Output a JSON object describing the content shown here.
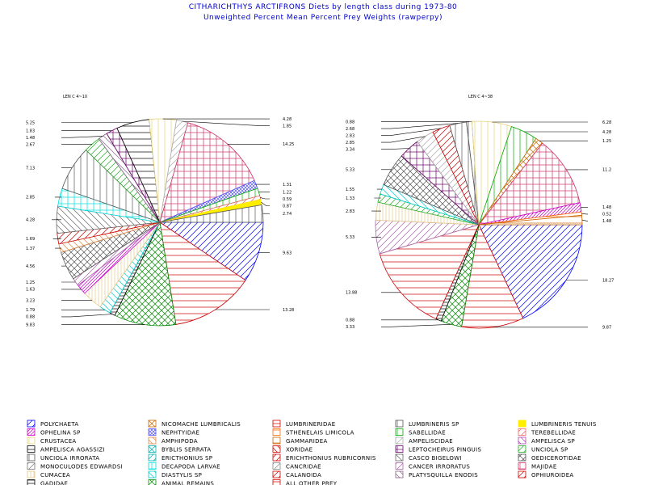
{
  "title": "CITHARICHTHYS ARCTIFRONS Diets by length class during 1973-80",
  "subtitle": "Unweighted Percent Mean Percent Prey  Weights (rawperpy)",
  "chart_data": [
    {
      "type": "pie",
      "label": "LEN C 4~10",
      "slices": [
        {
          "key": "polychaeta",
          "value": 9.63,
          "label": "9.63"
        },
        {
          "key": "other",
          "value": 13.28,
          "label": "13.28"
        },
        {
          "key": "animal",
          "value": 9.83,
          "label": "9.83"
        },
        {
          "key": "gad",
          "value": 0.88,
          "label": "0.88"
        },
        {
          "key": "diast",
          "value": 1.79,
          "label": "1.79"
        },
        {
          "key": "cuma",
          "value": 3.23,
          "label": "3.23"
        },
        {
          "key": "ophelina",
          "value": 1.63,
          "label": "1.63"
        },
        {
          "key": "cancer",
          "value": 1.25,
          "label": "1.25"
        },
        {
          "key": "oedic",
          "value": 4.56,
          "label": "4.56"
        },
        {
          "key": "amphipoda",
          "value": 1.37,
          "label": "1.37"
        },
        {
          "key": "erubr",
          "value": 1.69,
          "label": "1.69"
        },
        {
          "key": "casco",
          "value": 4.28,
          "label": "4.28"
        },
        {
          "key": "decapoda",
          "value": 2.85,
          "label": "2.85"
        },
        {
          "key": "uirr",
          "value": 7.13,
          "label": "7.13"
        },
        {
          "key": "unciola",
          "value": 2.67,
          "label": "2.67"
        },
        {
          "key": "platy",
          "value": 1.48,
          "label": "1.48"
        },
        {
          "key": "pinguis",
          "value": 1.83,
          "label": "1.83"
        },
        {
          "key": "ampag",
          "value": 5.25,
          "label": "5.25"
        },
        {
          "key": "crustacea",
          "value": 4.28,
          "label": "4.28"
        },
        {
          "key": "ampel",
          "value": 1.85,
          "label": "1.85"
        },
        {
          "key": "majid",
          "value": 14.25,
          "label": "14.25"
        },
        {
          "key": "nephtyidae",
          "value": 1.31,
          "label": "1.31"
        },
        {
          "key": "sabell",
          "value": 1.22,
          "label": "1.22"
        },
        {
          "key": "tereb",
          "value": 0.59,
          "label": "0.59"
        },
        {
          "key": "lumtenuis",
          "value": 0.87,
          "label": "0.87"
        },
        {
          "key": "lumsp",
          "value": 2.74,
          "label": "2.74"
        }
      ]
    },
    {
      "type": "pie",
      "label": "LEN C 4~38",
      "slices": [
        {
          "key": "polychaeta",
          "value": 18.27,
          "label": "18.27"
        },
        {
          "key": "lumbrin",
          "value": 9.87,
          "label": "9.87"
        },
        {
          "key": "animal",
          "value": 3.33,
          "label": "3.33"
        },
        {
          "key": "gad",
          "value": 0.88,
          "label": "0.88"
        },
        {
          "key": "other",
          "value": 13.88,
          "label": "13.88"
        },
        {
          "key": "cancer",
          "value": 5.33,
          "label": "5.33"
        },
        {
          "key": "cuma",
          "value": 2.83,
          "label": "2.83"
        },
        {
          "key": "unciola",
          "value": 1.33,
          "label": "1.33"
        },
        {
          "key": "diast",
          "value": 1.55,
          "label": "1.55"
        },
        {
          "key": "oedic",
          "value": 5.33,
          "label": "5.33"
        },
        {
          "key": "pinguis",
          "value": 3.34,
          "label": "3.34"
        },
        {
          "key": "ampel",
          "value": 2.85,
          "label": "2.85"
        },
        {
          "key": "erubr",
          "value": 2.83,
          "label": "2.83"
        },
        {
          "key": "lumsp",
          "value": 2.68,
          "label": "2.68"
        },
        {
          "key": "uirr",
          "value": 0.88,
          "label": "0.88"
        },
        {
          "key": "crustacea",
          "value": 6.28,
          "label": "6.28"
        },
        {
          "key": "sabell",
          "value": 4.28,
          "label": "4.28"
        },
        {
          "key": "nicomache",
          "value": 1.25,
          "label": "1.25"
        },
        {
          "key": "majid",
          "value": 11.2,
          "label": "11.2"
        },
        {
          "key": "ophelina",
          "value": 1.48,
          "label": "1.48"
        },
        {
          "key": "stenel",
          "value": 0.52,
          "label": "0.52"
        },
        {
          "key": "gamm",
          "value": 1.48,
          "label": "1.48"
        }
      ]
    }
  ],
  "legend": {
    "columns": [
      [
        {
          "key": "polychaeta",
          "name": "POLYCHAETA"
        },
        {
          "key": "ophelina",
          "name": "OPHELINA SP"
        },
        {
          "key": "crustacea",
          "name": "CRUSTACEA"
        },
        {
          "key": "ampag",
          "name": "AMPELISCA AGASSIZI"
        },
        {
          "key": "uirr",
          "name": "UNCIOLA IRRORATA"
        },
        {
          "key": "mono",
          "name": "MONOCULODES EDWARDSI"
        },
        {
          "key": "cuma",
          "name": "CUMACEA"
        },
        {
          "key": "gad",
          "name": "GADIDAE"
        }
      ],
      [
        {
          "key": "nicomache",
          "name": "NICOMACHE LUMBRICALIS"
        },
        {
          "key": "nephtyidae",
          "name": "NEPHTYIDAE"
        },
        {
          "key": "amphipoda",
          "name": "AMPHIPODA"
        },
        {
          "key": "byblis",
          "name": "BYBLIS SERRATA"
        },
        {
          "key": "erics",
          "name": "ERICTHONIUS SP"
        },
        {
          "key": "decapoda",
          "name": "DECAPODA LARVAE"
        },
        {
          "key": "diast",
          "name": "DIASTYLIS SP"
        },
        {
          "key": "animal",
          "name": "ANIMAL REMAINS"
        }
      ],
      [
        {
          "key": "lumbrin",
          "name": "LUMBRINERIDAE"
        },
        {
          "key": "stenel",
          "name": "STHENELAIS LIMICOLA"
        },
        {
          "key": "gamm",
          "name": "GAMMARIDEA"
        },
        {
          "key": "xor",
          "name": "XORIDAE"
        },
        {
          "key": "erubr",
          "name": "ERICHTHONIUS RUBRICORNIS"
        },
        {
          "key": "cancrid",
          "name": "CANCRIDAE"
        },
        {
          "key": "calan",
          "name": "CALANOIDA"
        },
        {
          "key": "other",
          "name": "ALL OTHER PREY"
        }
      ],
      [
        {
          "key": "lumsp",
          "name": "LUMBRINERIS SP"
        },
        {
          "key": "sabell",
          "name": "SABELLIDAE"
        },
        {
          "key": "ampel",
          "name": "AMPELISCIDAE"
        },
        {
          "key": "pinguis",
          "name": "LEPTOCHEIRUS PINGUIS"
        },
        {
          "key": "casco",
          "name": "CASCO BIGELOWI"
        },
        {
          "key": "cancer",
          "name": "CANCER IRRORATUS"
        },
        {
          "key": "platy",
          "name": "PLATYSQUILLA ENODIS"
        }
      ],
      [
        {
          "key": "lumtenuis",
          "name": "LUMBRINERIS TENUIS"
        },
        {
          "key": "tereb",
          "name": "TEREBELLIDAE"
        },
        {
          "key": "ampelsp",
          "name": "AMPELISCA SP"
        },
        {
          "key": "unciola",
          "name": "UNCIOLA SP"
        },
        {
          "key": "oedic",
          "name": "OEDICEROTIDAE"
        },
        {
          "key": "majid",
          "name": "MAJIDAE"
        },
        {
          "key": "ophi",
          "name": "OPHIUROIDEA"
        }
      ]
    ]
  },
  "styles": {
    "polychaeta": {
      "color": "#0000ff",
      "pattern": "diag"
    },
    "ophelina": {
      "color": "#cc00cc",
      "pattern": "diag-dense"
    },
    "crustacea": {
      "color": "#e6d27a",
      "pattern": "vert"
    },
    "ampag": {
      "color": "#000000",
      "pattern": "horiz"
    },
    "uirr": {
      "color": "#555555",
      "pattern": "vert"
    },
    "mono": {
      "color": "#777777",
      "pattern": "diag"
    },
    "cuma": {
      "color": "#e6c88a",
      "pattern": "vert-dense"
    },
    "gad": {
      "color": "#000000",
      "pattern": "horiz-dense"
    },
    "nicomache": {
      "color": "#cc6600",
      "pattern": "cross-diag"
    },
    "nephtyidae": {
      "color": "#5555ff",
      "pattern": "cross-diag-dense"
    },
    "amphipoda": {
      "color": "#dd8844",
      "pattern": "diag-r"
    },
    "byblis": {
      "color": "#00aaaa",
      "pattern": "cross-diag"
    },
    "erics": {
      "color": "#00aaaa",
      "pattern": "diag"
    },
    "decapoda": {
      "color": "#00dddd",
      "pattern": "grid"
    },
    "diast": {
      "color": "#00cccc",
      "pattern": "diag-r"
    },
    "animal": {
      "color": "#008800",
      "pattern": "cross-diag"
    },
    "lumbrin": {
      "color": "#cc0000",
      "pattern": "horiz"
    },
    "stenel": {
      "color": "#ff6600",
      "pattern": "horiz"
    },
    "gamm": {
      "color": "#cc6600",
      "pattern": "horiz"
    },
    "xor": {
      "color": "#cc0000",
      "pattern": "diag-r"
    },
    "erubr": {
      "color": "#cc0000",
      "pattern": "diag"
    },
    "cancrid": {
      "color": "#888888",
      "pattern": "diag"
    },
    "calan": {
      "color": "#cc0000",
      "pattern": "diag"
    },
    "other": {
      "color": "#cc0000",
      "pattern": "horiz"
    },
    "lumsp": {
      "color": "#555555",
      "pattern": "vert"
    },
    "sabell": {
      "color": "#00aa00",
      "pattern": "vert"
    },
    "ampel": {
      "color": "#aaaaaa",
      "pattern": "diag"
    },
    "pinguis": {
      "color": "#660066",
      "pattern": "grid"
    },
    "casco": {
      "color": "#666666",
      "pattern": "diag-r"
    },
    "cancer": {
      "color": "#aa66aa",
      "pattern": "diag"
    },
    "platy": {
      "color": "#886688",
      "pattern": "diag-r"
    },
    "lumtenuis": {
      "color": "#ffee00",
      "pattern": "solid"
    },
    "tereb": {
      "color": "#ee6666",
      "pattern": "diag"
    },
    "ampelsp": {
      "color": "#aa44aa",
      "pattern": "diag-r"
    },
    "unciola": {
      "color": "#22aa22",
      "pattern": "diag"
    },
    "oedic": {
      "color": "#555555",
      "pattern": "cross-diag"
    },
    "majid": {
      "color": "#cc3366",
      "pattern": "grid"
    },
    "ophi": {
      "color": "#cc0000",
      "pattern": "diag"
    }
  }
}
